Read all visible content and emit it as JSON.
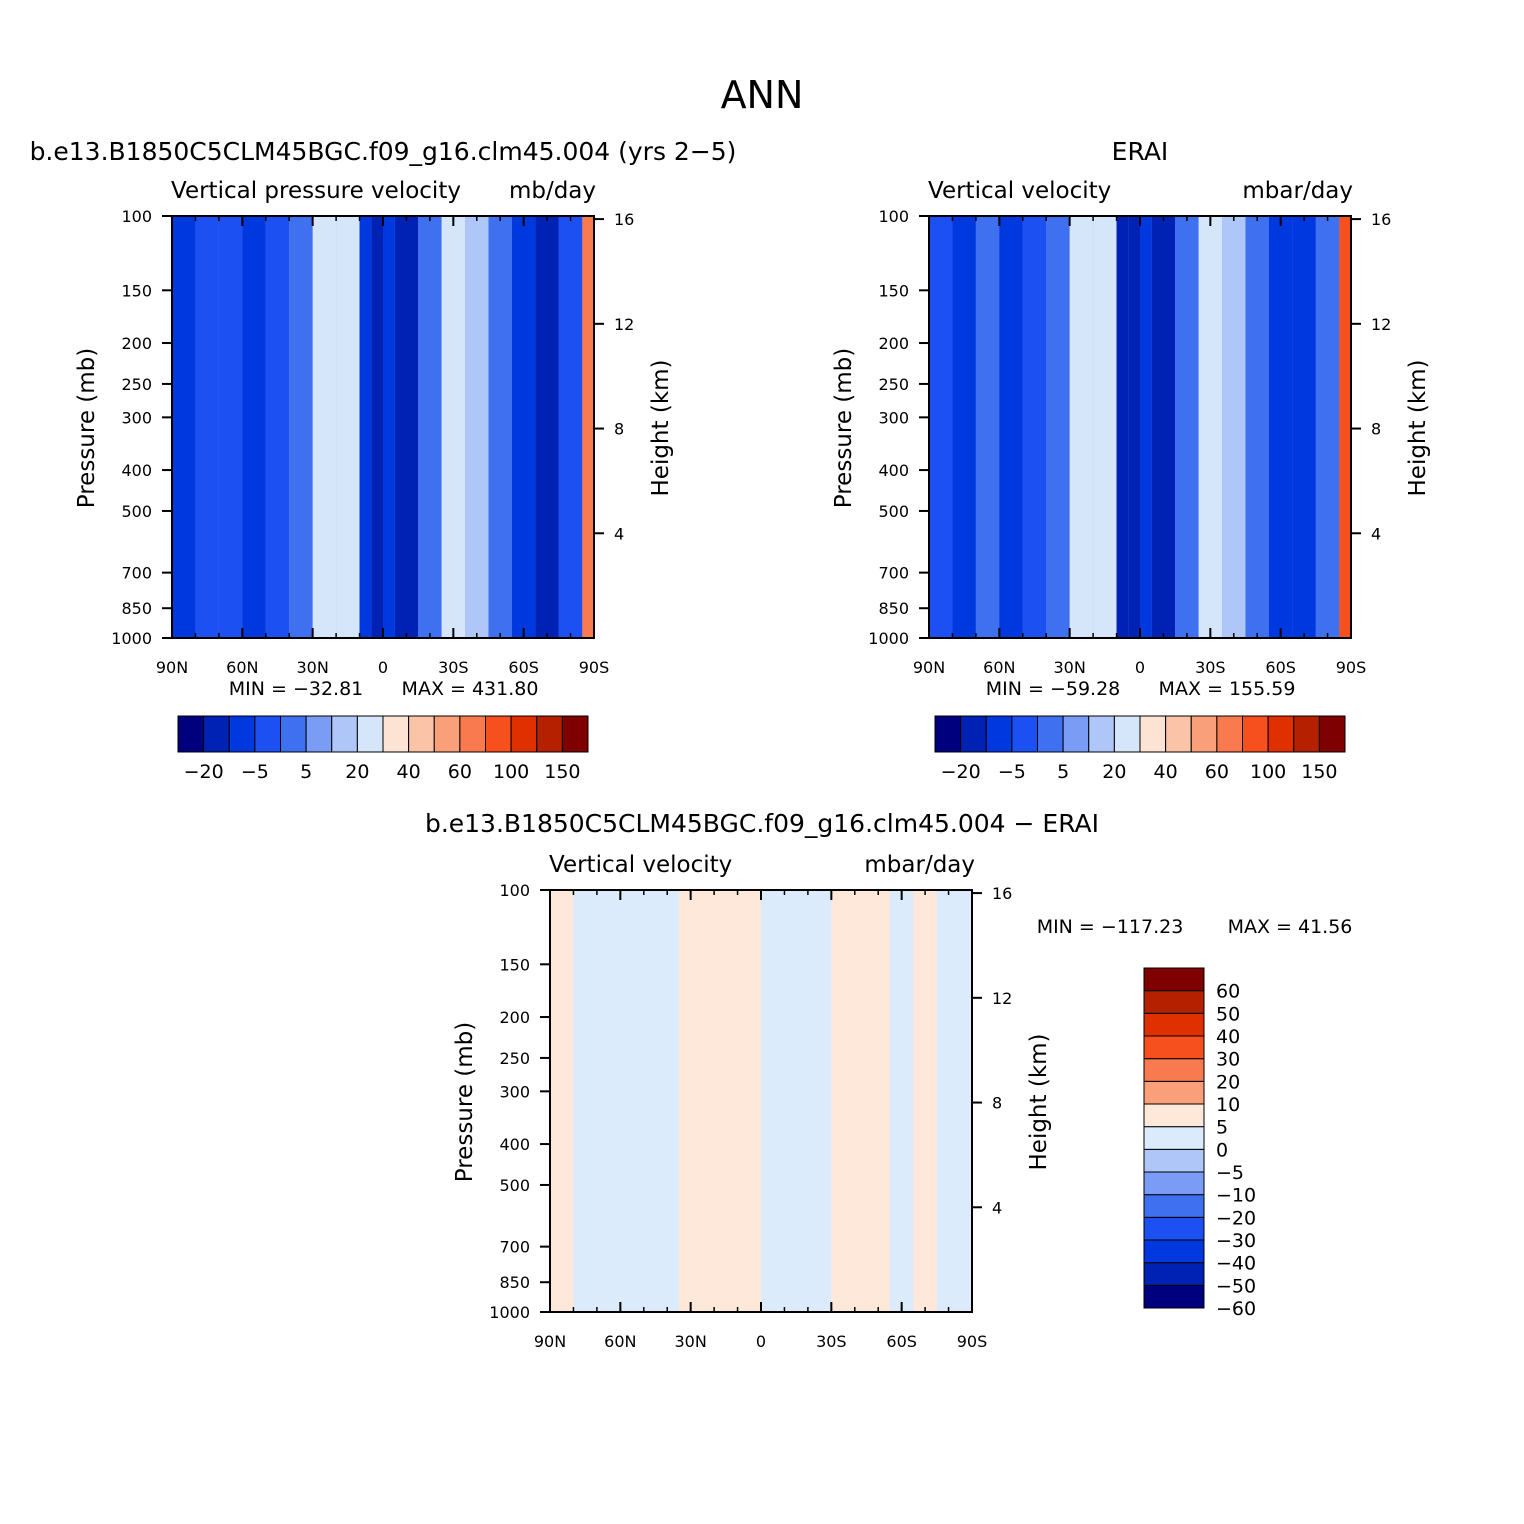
{
  "main_title": "ANN",
  "colors": {
    "model_scale": [
      "#00007f",
      "#0022b4",
      "#0038e0",
      "#1d50f2",
      "#3e70f0",
      "#7a9cf4",
      "#afc6f8",
      "#d6e6fa",
      "#fde3d4",
      "#fbc3a8",
      "#f9a07a",
      "#f87a4e",
      "#f5501e",
      "#e03000",
      "#b42000",
      "#7f0000"
    ],
    "diff_scale": [
      "#00007f",
      "#0022b4",
      "#0038e0",
      "#1d50f2",
      "#3e70f0",
      "#7a9cf4",
      "#afc6f8",
      "#dcebfb",
      "#fde8da",
      "#f9a07a",
      "#f87a4e",
      "#f5501e",
      "#e03000",
      "#b42000",
      "#7f0000"
    ]
  },
  "chart_data": [
    {
      "type": "heatmap",
      "title": "b.e13.B1850C5CLM45BGC.f09_g16.clm45.004 (yrs 2−5)",
      "subtitle_left": "Vertical pressure velocity",
      "subtitle_right": "mb/day",
      "xlabel": "",
      "ylabel": "Pressure (mb)",
      "y2label": "Height (km)",
      "x_ticks": [
        "90N",
        "60N",
        "30N",
        "0",
        "30S",
        "60S",
        "90S"
      ],
      "y_ticks": [
        "100",
        "150",
        "200",
        "250",
        "300",
        "400",
        "500",
        "700",
        "850",
        "1000"
      ],
      "y2_ticks": [
        "16",
        "12",
        "8",
        "4"
      ],
      "min_label": "MIN = −32.81",
      "max_label": "MAX = 431.80",
      "min": -32.81,
      "max": 431.8,
      "colorbar_labels": [
        "−20",
        "−5",
        "5",
        "20",
        "40",
        "60",
        "100",
        "150"
      ],
      "bands": [
        {
          "lat": 90,
          "v": -12
        },
        {
          "lat": 80,
          "v": -8
        },
        {
          "lat": 70,
          "v": -6
        },
        {
          "lat": 60,
          "v": -14
        },
        {
          "lat": 50,
          "v": -8
        },
        {
          "lat": 40,
          "v": 0
        },
        {
          "lat": 30,
          "v": 15
        },
        {
          "lat": 20,
          "v": 18
        },
        {
          "lat": 10,
          "v": -18
        },
        {
          "lat": 5,
          "v": -30
        },
        {
          "lat": 0,
          "v": -12
        },
        {
          "lat": -5,
          "v": -20
        },
        {
          "lat": -15,
          "v": -4
        },
        {
          "lat": -25,
          "v": 12
        },
        {
          "lat": -35,
          "v": 10
        },
        {
          "lat": -45,
          "v": -4
        },
        {
          "lat": -55,
          "v": -10
        },
        {
          "lat": -65,
          "v": -22
        },
        {
          "lat": -75,
          "v": -6
        },
        {
          "lat": -85,
          "v": 60
        }
      ]
    },
    {
      "type": "heatmap",
      "title": "ERAI",
      "subtitle_left": "Vertical velocity",
      "subtitle_right": "mbar/day",
      "xlabel": "",
      "ylabel": "Pressure (mb)",
      "y2label": "Height (km)",
      "x_ticks": [
        "90N",
        "60N",
        "30N",
        "0",
        "30S",
        "60S",
        "90S"
      ],
      "y_ticks": [
        "100",
        "150",
        "200",
        "250",
        "300",
        "400",
        "500",
        "700",
        "850",
        "1000"
      ],
      "y2_ticks": [
        "16",
        "12",
        "8",
        "4"
      ],
      "min_label": "MIN = −59.28",
      "max_label": "MAX = 155.59",
      "min": -59.28,
      "max": 155.59,
      "colorbar_labels": [
        "−20",
        "−5",
        "5",
        "20",
        "40",
        "60",
        "100",
        "150"
      ],
      "bands": [
        {
          "lat": 90,
          "v": -6
        },
        {
          "lat": 80,
          "v": -10
        },
        {
          "lat": 70,
          "v": 0
        },
        {
          "lat": 60,
          "v": -14
        },
        {
          "lat": 50,
          "v": -8
        },
        {
          "lat": 40,
          "v": -2
        },
        {
          "lat": 30,
          "v": 15
        },
        {
          "lat": 20,
          "v": 12
        },
        {
          "lat": 10,
          "v": -22
        },
        {
          "lat": 5,
          "v": -30
        },
        {
          "lat": 0,
          "v": -15
        },
        {
          "lat": -5,
          "v": -20
        },
        {
          "lat": -15,
          "v": -4
        },
        {
          "lat": -25,
          "v": 12
        },
        {
          "lat": -35,
          "v": 10
        },
        {
          "lat": -45,
          "v": -2
        },
        {
          "lat": -55,
          "v": -10
        },
        {
          "lat": -65,
          "v": -18
        },
        {
          "lat": -75,
          "v": -2
        },
        {
          "lat": -85,
          "v": 80
        }
      ]
    },
    {
      "type": "heatmap",
      "title": "b.e13.B1850C5CLM45BGC.f09_g16.clm45.004 − ERAI",
      "subtitle_left": "Vertical velocity",
      "subtitle_right": "mbar/day",
      "xlabel": "",
      "ylabel": "Pressure (mb)",
      "y2label": "Height (km)",
      "x_ticks": [
        "90N",
        "60N",
        "30N",
        "0",
        "30S",
        "60S",
        "90S"
      ],
      "y_ticks": [
        "100",
        "150",
        "200",
        "250",
        "300",
        "400",
        "500",
        "700",
        "850",
        "1000"
      ],
      "y2_ticks": [
        "16",
        "12",
        "8",
        "4"
      ],
      "min_label": "MIN = −117.23",
      "max_label": "MAX =  41.56",
      "min": -117.23,
      "max": 41.56,
      "colorbar_labels": [
        "60",
        "50",
        "40",
        "30",
        "20",
        "10",
        "5",
        "0",
        "−5",
        "−10",
        "−20",
        "−30",
        "−40",
        "−50",
        "−60"
      ],
      "bands": [
        {
          "lat": 90,
          "v": 2
        },
        {
          "lat": 80,
          "v": -1
        },
        {
          "lat": 70,
          "v": -2
        },
        {
          "lat": 60,
          "v": -1
        },
        {
          "lat": 45,
          "v": -2
        },
        {
          "lat": 35,
          "v": 1
        },
        {
          "lat": 25,
          "v": 2
        },
        {
          "lat": 15,
          "v": 1
        },
        {
          "lat": 5,
          "v": 2
        },
        {
          "lat": 0,
          "v": -1
        },
        {
          "lat": -10,
          "v": -2
        },
        {
          "lat": -20,
          "v": -1
        },
        {
          "lat": -30,
          "v": 1
        },
        {
          "lat": -40,
          "v": 2
        },
        {
          "lat": -55,
          "v": -1
        },
        {
          "lat": -65,
          "v": 1
        },
        {
          "lat": -75,
          "v": -2
        },
        {
          "lat": -85,
          "v": -1
        }
      ]
    }
  ]
}
